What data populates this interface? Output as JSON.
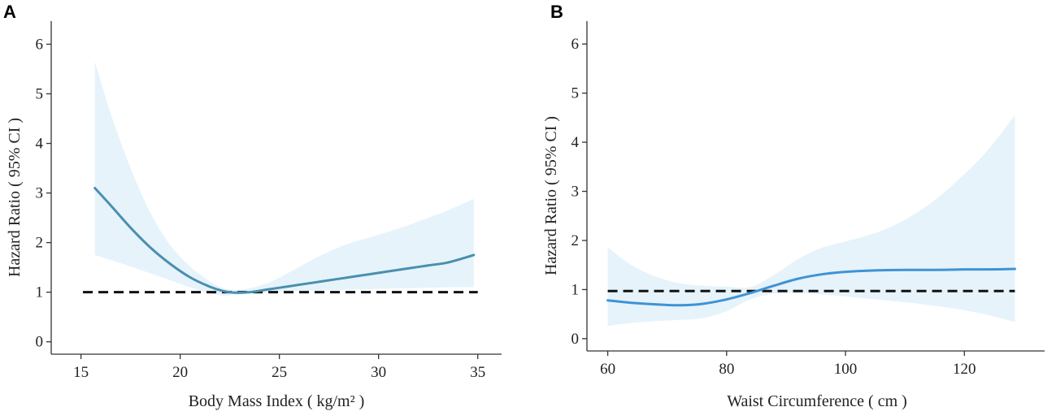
{
  "colors": {
    "panel_a_curve": "#4a8fb0",
    "panel_b_curve": "#3f93d4",
    "ci_band": "#e6f3fb",
    "reference_line": "#111111"
  },
  "chart_data": [
    {
      "type": "line",
      "panel_label": "A",
      "xlabel": "Body Mass Index ( kg/m² )",
      "ylabel": "Hazard Ratio ( 95% CI )",
      "xlim": [
        13.5,
        36.2
      ],
      "ylim": [
        -0.25,
        6.4
      ],
      "x_ticks": [
        15,
        20,
        25,
        30,
        35
      ],
      "y_ticks": [
        0,
        1,
        2,
        3,
        4,
        5,
        6
      ],
      "reference_line": {
        "y": 1,
        "x_from": 15.1,
        "x_to": 35.0,
        "style": "dashed"
      },
      "series": [
        {
          "name": "Hazard Ratio",
          "x": [
            15.7,
            16.5,
            17.5,
            18.5,
            19.5,
            20.5,
            21.5,
            22.2,
            22.8,
            23.5,
            24.5,
            25.5,
            26.5,
            27.5,
            28.5,
            29.5,
            30.5,
            31.5,
            32.5,
            33.5,
            34.8
          ],
          "y": [
            3.1,
            2.75,
            2.3,
            1.9,
            1.57,
            1.3,
            1.11,
            1.02,
            0.99,
            1.0,
            1.06,
            1.12,
            1.18,
            1.24,
            1.3,
            1.36,
            1.42,
            1.48,
            1.54,
            1.6,
            1.75
          ],
          "lower": [
            1.75,
            1.65,
            1.52,
            1.38,
            1.24,
            1.1,
            0.98,
            0.93,
            0.95,
            0.97,
            1.0,
            1.02,
            1.03,
            1.04,
            1.05,
            1.06,
            1.07,
            1.08,
            1.09,
            1.1,
            1.1
          ],
          "upper": [
            5.65,
            4.6,
            3.5,
            2.6,
            1.95,
            1.52,
            1.22,
            1.08,
            1.05,
            1.08,
            1.2,
            1.4,
            1.62,
            1.82,
            1.98,
            2.1,
            2.22,
            2.35,
            2.5,
            2.65,
            2.88
          ]
        }
      ]
    },
    {
      "type": "line",
      "panel_label": "B",
      "xlabel": "Waist Circumference ( cm )",
      "ylabel": "Hazard Ratio ( 95% CI )",
      "xlim": [
        56.5,
        133.5
      ],
      "ylim": [
        -0.25,
        6.4
      ],
      "x_ticks": [
        60,
        80,
        100,
        120
      ],
      "y_ticks": [
        0,
        1,
        2,
        3,
        4,
        5,
        6
      ],
      "reference_line": {
        "y": 0.97,
        "x_from": 60,
        "x_to": 128.5,
        "style": "dashed"
      },
      "series": [
        {
          "name": "Hazard Ratio",
          "x": [
            60,
            64,
            68,
            72,
            76,
            80,
            84,
            88,
            92,
            96,
            100,
            105,
            110,
            115,
            120,
            124,
            128.5
          ],
          "y": [
            0.78,
            0.73,
            0.7,
            0.68,
            0.71,
            0.8,
            0.93,
            1.08,
            1.22,
            1.31,
            1.36,
            1.39,
            1.4,
            1.4,
            1.41,
            1.41,
            1.42
          ],
          "lower": [
            0.26,
            0.32,
            0.36,
            0.38,
            0.42,
            0.56,
            0.8,
            0.92,
            0.93,
            0.9,
            0.86,
            0.8,
            0.74,
            0.67,
            0.58,
            0.48,
            0.34
          ],
          "upper": [
            1.86,
            1.5,
            1.27,
            1.13,
            1.08,
            1.06,
            1.05,
            1.3,
            1.62,
            1.85,
            1.98,
            2.15,
            2.42,
            2.82,
            3.35,
            3.85,
            4.55
          ]
        }
      ]
    }
  ]
}
